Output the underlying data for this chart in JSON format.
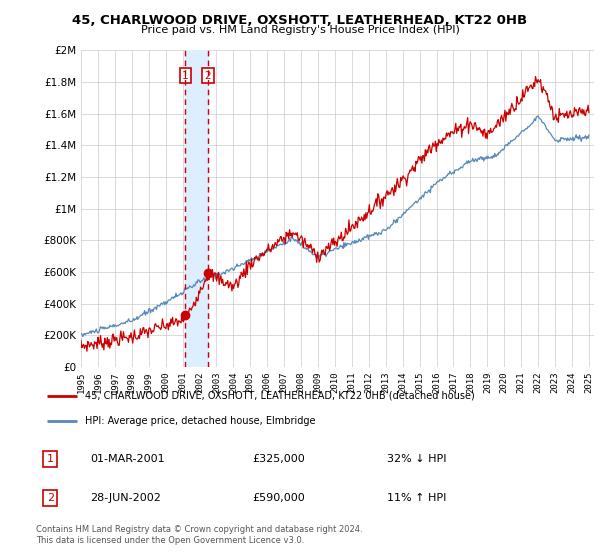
{
  "title": "45, CHARLWOOD DRIVE, OXSHOTT, LEATHERHEAD, KT22 0HB",
  "subtitle": "Price paid vs. HM Land Registry's House Price Index (HPI)",
  "red_label": "45, CHARLWOOD DRIVE, OXSHOTT, LEATHERHEAD, KT22 0HB (detached house)",
  "blue_label": "HPI: Average price, detached house, Elmbridge",
  "annotation1_num": "1",
  "annotation1_date": "01-MAR-2001",
  "annotation1_price": "£325,000",
  "annotation1_hpi": "32% ↓ HPI",
  "annotation2_num": "2",
  "annotation2_date": "28-JUN-2002",
  "annotation2_price": "£590,000",
  "annotation2_hpi": "11% ↑ HPI",
  "footer": "Contains HM Land Registry data © Crown copyright and database right 2024.\nThis data is licensed under the Open Government Licence v3.0.",
  "red_color": "#cc0000",
  "blue_color": "#5588bb",
  "shade_color": "#ddeeff",
  "vline_color": "#cc0000",
  "background_color": "#ffffff",
  "grid_color": "#cccccc",
  "ylim": [
    0,
    2000000
  ],
  "yticks": [
    0,
    200000,
    400000,
    600000,
    800000,
    1000000,
    1200000,
    1400000,
    1600000,
    1800000,
    2000000
  ],
  "xstart": 1995,
  "xend": 2025,
  "marker1_year": 2001.17,
  "marker1_value": 325000,
  "marker2_year": 2002.49,
  "marker2_value": 590000
}
